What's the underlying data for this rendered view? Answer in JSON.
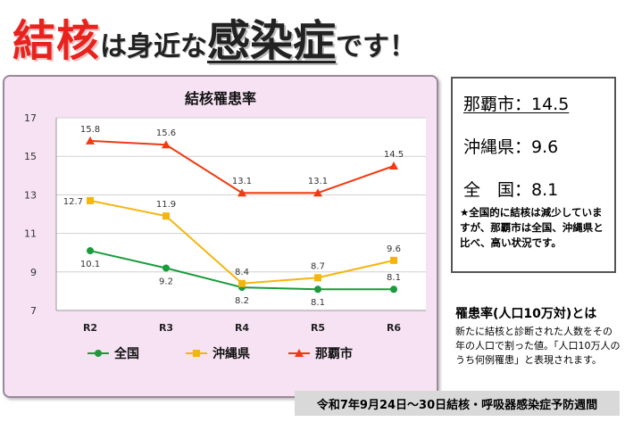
{
  "headline": {
    "part1": "結核",
    "part2": "は身近な",
    "part3": "感染症",
    "part4": "です！"
  },
  "colors": {
    "zenkoku": "#1a9b3c",
    "okinawa": "#f5b50d",
    "naha": "#f23a11",
    "panel_bg": "#f6e2f3",
    "headline_red": "#e8231e"
  },
  "chart_data": {
    "type": "line",
    "title": "結核罹患率",
    "categories": [
      "R2",
      "R3",
      "R4",
      "R5",
      "R6"
    ],
    "ylim": [
      7,
      17
    ],
    "yticks": [
      7,
      9,
      11,
      13,
      15,
      17
    ],
    "xlabel": "",
    "ylabel": "",
    "grid": true,
    "legend": "bottom",
    "series": [
      {
        "key": "zenkoku",
        "name": "全国",
        "marker": "circle",
        "values": [
          10.1,
          9.2,
          8.2,
          8.1,
          8.1
        ],
        "label_pos": [
          "below",
          "below",
          "below",
          "below",
          "above"
        ]
      },
      {
        "key": "okinawa",
        "name": "沖縄県",
        "marker": "square",
        "values": [
          12.7,
          11.9,
          8.4,
          8.7,
          9.6
        ],
        "label_pos": [
          "left",
          "above",
          "above",
          "above",
          "above"
        ]
      },
      {
        "key": "naha",
        "name": "那覇市",
        "marker": "triangle",
        "values": [
          15.8,
          15.6,
          13.1,
          13.1,
          14.5
        ],
        "label_pos": [
          "above",
          "above",
          "above",
          "above",
          "above"
        ]
      }
    ]
  },
  "stats": {
    "naha": "那覇市：14.5",
    "okinawa": "沖縄県：9.6",
    "national": "全　国：8.1",
    "note": "★全国的に結核は減少していますが、那覇市は全国、沖縄県と比べ、高い状況です。"
  },
  "definition": {
    "title": "罹患率(人口10万対)とは",
    "text": "新たに結核と診断された人数をその年の人口で割った値。「人口10万人のうち何例罹患」と表現されます。"
  },
  "footer": "令和7年9月24日～30日結核・呼吸器感染症予防週間"
}
